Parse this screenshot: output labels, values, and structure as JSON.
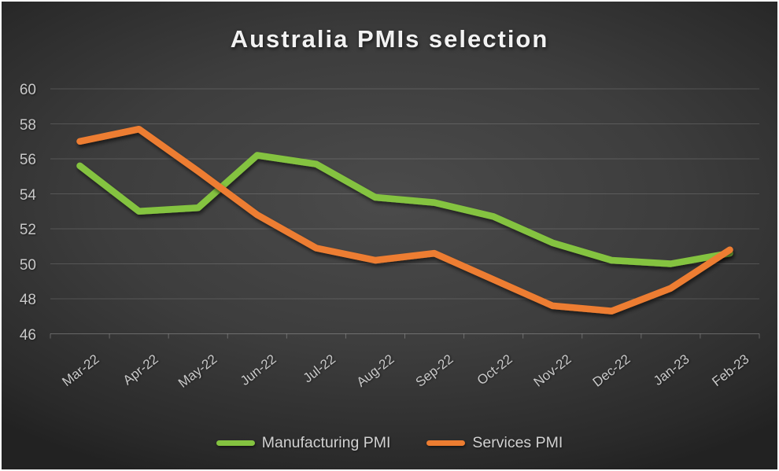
{
  "chart_data": {
    "type": "line",
    "title": "Australia PMIs selection",
    "categories": [
      "Mar-22",
      "Apr-22",
      "May-22",
      "Jun-22",
      "Jul-22",
      "Aug-22",
      "Sep-22",
      "Oct-22",
      "Nov-22",
      "Dec-22",
      "Jan-23",
      "Feb-23"
    ],
    "series": [
      {
        "name": "Manufacturing PMI",
        "color": "#84C340",
        "values": [
          55.6,
          53.0,
          53.2,
          56.2,
          55.7,
          53.8,
          53.5,
          52.7,
          51.2,
          50.2,
          50.0,
          50.6
        ]
      },
      {
        "name": "Services PMI",
        "color": "#ED7D31",
        "values": [
          57.0,
          57.7,
          55.3,
          52.8,
          50.9,
          50.2,
          50.6,
          49.1,
          47.6,
          47.3,
          48.6,
          50.8
        ]
      }
    ],
    "ylim": [
      46,
      60
    ],
    "yticks": [
      60,
      58,
      56,
      54,
      52,
      50,
      48,
      46
    ],
    "xlabel": "",
    "ylabel": "",
    "grid": "horizontal",
    "legend_position": "bottom",
    "axis_text_color": "#c9c9c9",
    "title_color": "#f2f2f2"
  }
}
